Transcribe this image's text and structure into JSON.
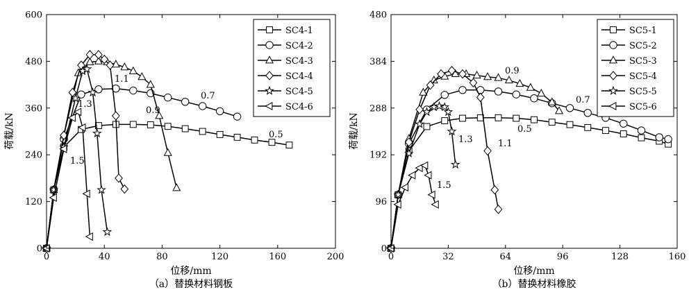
{
  "chart_data": [
    {
      "type": "line",
      "caption": "（a）替换材料钢板",
      "xlabel": "位移/mm",
      "ylabel": "荷载/kN",
      "xlim": [
        0,
        200
      ],
      "ylim": [
        0,
        600
      ],
      "xticks": [
        0,
        40,
        80,
        120,
        160,
        200
      ],
      "yticks": [
        0,
        120,
        240,
        360,
        480,
        600
      ],
      "legend_position": "top-right",
      "grid": false,
      "series": [
        {
          "name": "SC4-1",
          "marker": "square",
          "x": [
            0,
            5,
            12,
            24,
            36,
            48,
            60,
            72,
            84,
            96,
            108,
            120,
            132,
            144,
            156,
            168
          ],
          "y": [
            0,
            150,
            260,
            305,
            315,
            318,
            318,
            317,
            313,
            307,
            300,
            292,
            285,
            278,
            272,
            265
          ]
        },
        {
          "name": "SC4-2",
          "marker": "circle",
          "x": [
            0,
            5,
            12,
            24,
            36,
            48,
            60,
            72,
            84,
            96,
            108,
            120,
            132
          ],
          "y": [
            0,
            150,
            280,
            395,
            408,
            410,
            405,
            398,
            387,
            376,
            365,
            352,
            338
          ]
        },
        {
          "name": "SC4-3",
          "marker": "triangle",
          "x": [
            0,
            5,
            12,
            22,
            30,
            36,
            42,
            48,
            54,
            60,
            66,
            72,
            78,
            84,
            90
          ],
          "y": [
            0,
            150,
            290,
            450,
            478,
            480,
            478,
            472,
            465,
            455,
            440,
            420,
            340,
            245,
            155
          ]
        },
        {
          "name": "SC4-4",
          "marker": "diamond",
          "x": [
            0,
            5,
            12,
            18,
            24,
            30,
            36,
            40,
            44,
            48,
            50,
            54
          ],
          "y": [
            0,
            150,
            290,
            400,
            470,
            497,
            497,
            485,
            470,
            340,
            180,
            152
          ]
        },
        {
          "name": "SC4-5",
          "marker": "star",
          "x": [
            0,
            5,
            12,
            20,
            25,
            28,
            32,
            35,
            38,
            42
          ],
          "y": [
            0,
            150,
            260,
            385,
            455,
            460,
            400,
            295,
            150,
            42
          ]
        },
        {
          "name": "SC4-6",
          "marker": "triangle-left",
          "x": [
            0,
            5,
            12,
            18,
            22,
            25,
            28,
            30
          ],
          "y": [
            0,
            130,
            255,
            335,
            350,
            310,
            140,
            30
          ]
        }
      ],
      "annotations": [
        "0.5",
        "0.7",
        "0.9",
        "1.1",
        "1.3",
        "1.5"
      ]
    },
    {
      "type": "line",
      "caption": "（b）替换材料橡胶",
      "xlabel": "位移/mm",
      "ylabel": "荷载/kN",
      "xlim": [
        0,
        160
      ],
      "ylim": [
        0,
        480
      ],
      "xticks": [
        0,
        32,
        64,
        96,
        128,
        160
      ],
      "yticks": [
        0,
        96,
        192,
        288,
        384,
        480
      ],
      "legend_position": "top-right",
      "grid": false,
      "series": [
        {
          "name": "SC5-1",
          "marker": "square",
          "x": [
            0,
            4,
            10,
            20,
            30,
            40,
            50,
            60,
            70,
            80,
            90,
            100,
            110,
            120,
            130,
            140,
            150,
            155
          ],
          "y": [
            0,
            110,
            200,
            250,
            262,
            267,
            268,
            268,
            267,
            264,
            259,
            254,
            248,
            242,
            235,
            227,
            220,
            214
          ]
        },
        {
          "name": "SC5-2",
          "marker": "circle",
          "x": [
            0,
            4,
            10,
            20,
            30,
            40,
            50,
            60,
            70,
            80,
            90,
            100,
            110,
            120,
            130,
            140,
            150,
            155
          ],
          "y": [
            0,
            110,
            215,
            285,
            315,
            325,
            325,
            322,
            316,
            308,
            298,
            288,
            278,
            268,
            256,
            242,
            228,
            224
          ]
        },
        {
          "name": "SC5-3",
          "marker": "triangle",
          "x": [
            0,
            4,
            10,
            18,
            24,
            30,
            36,
            42,
            48,
            54,
            60,
            66,
            72,
            78,
            84,
            90,
            94
          ],
          "y": [
            0,
            110,
            225,
            320,
            345,
            353,
            358,
            358,
            355,
            352,
            350,
            345,
            338,
            330,
            318,
            300,
            282
          ]
        },
        {
          "name": "SC5-4",
          "marker": "diamond",
          "x": [
            0,
            4,
            10,
            16,
            22,
            28,
            34,
            40,
            46,
            50,
            54,
            58,
            60
          ],
          "y": [
            0,
            110,
            218,
            285,
            335,
            358,
            365,
            358,
            340,
            310,
            200,
            120,
            80
          ]
        },
        {
          "name": "SC5-5",
          "marker": "star",
          "x": [
            0,
            4,
            10,
            16,
            20,
            24,
            27,
            30,
            32,
            34,
            36
          ],
          "y": [
            0,
            110,
            195,
            255,
            280,
            290,
            292,
            290,
            280,
            240,
            172
          ]
        },
        {
          "name": "SC5-6",
          "marker": "triangle-left",
          "x": [
            0,
            4,
            8,
            12,
            16,
            19,
            21,
            23,
            25
          ],
          "y": [
            0,
            90,
            125,
            150,
            165,
            170,
            150,
            110,
            90
          ]
        }
      ],
      "annotations": [
        "0.5",
        "0.7",
        "0.9",
        "1.1",
        "1.3",
        "1.5"
      ]
    }
  ]
}
